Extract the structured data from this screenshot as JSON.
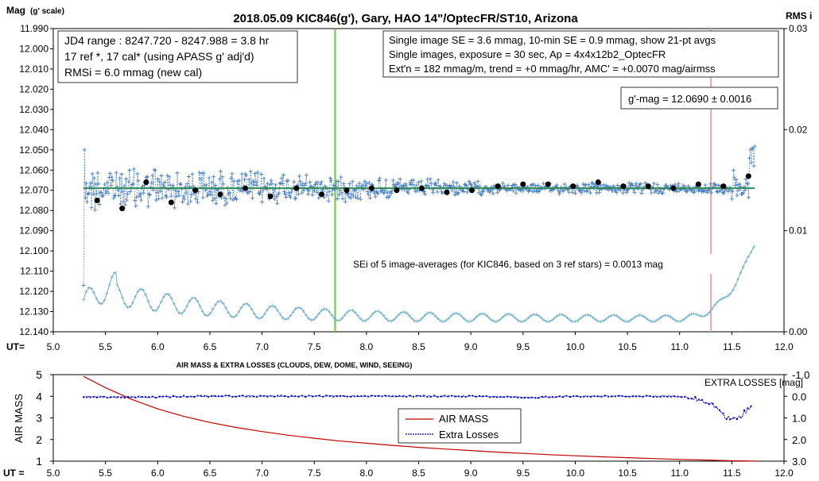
{
  "chart_data": [
    {
      "type": "line",
      "title": "2018.05.09  KIC846(g'),  Gary, HAO  14\"/OptecFR/ST10,  Arizona",
      "ylabel_left": "Mag",
      "ylabel_left_sub": "(g' scale)",
      "ylabel_right": "RMS i",
      "xlabel": "UT=",
      "xlim": [
        5.0,
        12.0
      ],
      "ylim_left": [
        12.14,
        11.99
      ],
      "ylim_right": [
        0.0,
        0.03
      ],
      "x_ticks": [
        "5.0",
        "5.5",
        "6.0",
        "6.5",
        "7.0",
        "7.5",
        "8.0",
        "8.5",
        "9.0",
        "9.5",
        "10.0",
        "10.5",
        "11.0",
        "11.5",
        "12.0"
      ],
      "y_left_ticks": [
        "11.990",
        "12.000",
        "12.010",
        "12.020",
        "12.030",
        "12.040",
        "12.050",
        "12.060",
        "12.070",
        "12.080",
        "12.090",
        "12.100",
        "12.110",
        "12.120",
        "12.130",
        "12.140"
      ],
      "y_right_ticks": [
        "0.03",
        "0.02",
        "0.01",
        "0.00"
      ],
      "vertical_lines": [
        {
          "x": 7.7,
          "color": "#66cc33"
        },
        {
          "x": 11.3,
          "color": "#f4a6b0"
        }
      ],
      "fit_line": {
        "y": 12.069,
        "color": "#2e8b57"
      },
      "grid": false,
      "annotations": {
        "box_left": [
          "JD4 range : 8247.720 - 8247.988 =  3.8  hr",
          "17 ref *,  17 cal* (using APASS g' adj'd)",
          "RMSi = 6.0 mmag (new cal)"
        ],
        "box_right": [
          "Single image SE = 3.6 mmag, 10-min SE = 0.9 mmag, show  21-pt avgs",
          "Single images, exposure = 30 sec, Ap = 4x4x12b2_OptecFR",
          "Ext'n = 182 mmag/m, trend =  +0 mmag/hr, AMC' = +0.0070 mag/airmss"
        ],
        "gmag_box": "g'-mag = 12.0690 ± 0.0016",
        "sei_text": "SEi of 5 image-averages (for KIC846, based on 3 ref stars) = 0.0013  mag"
      },
      "series": [
        {
          "name": "",
          "color": "#4a7fc1",
          "marker": "plus",
          "x_start": 5.29,
          "x_end": 11.72,
          "base": 12.069,
          "spread_start": 0.009,
          "spread_end": 0.002
        },
        {
          "name": "",
          "color": "#000000",
          "marker": "circle",
          "x": [
            5.42,
            5.66,
            5.89,
            6.13,
            6.36,
            6.6,
            6.84,
            7.08,
            7.33,
            7.57,
            7.81,
            8.05,
            8.29,
            8.53,
            8.77,
            9.01,
            9.26,
            9.5,
            9.74,
            9.98,
            10.22,
            10.46,
            10.7,
            10.94,
            11.18,
            11.42,
            11.66
          ],
          "y": [
            12.075,
            12.079,
            12.066,
            12.076,
            12.07,
            12.072,
            12.069,
            12.073,
            12.069,
            12.072,
            12.07,
            12.069,
            12.07,
            12.069,
            12.071,
            12.07,
            12.068,
            12.067,
            12.067,
            12.068,
            12.066,
            12.068,
            12.068,
            12.069,
            12.067,
            12.068,
            12.063
          ]
        },
        {
          "name": "",
          "color": "#6fb0c8",
          "marker": "plus",
          "axis": "right",
          "note": "RMS i",
          "x_start": 5.29,
          "x_end": 11.72
        }
      ]
    },
    {
      "type": "line",
      "title": "AIR MASS & EXTRA LOSSES (CLOUDS, DEW, DOME, WIND, SEEING)",
      "ylabel_left": "AIR MASS",
      "ylabel_right": "EXTRA LOSSES [mag]",
      "xlabel": "UT =",
      "xlim": [
        5.0,
        12.0
      ],
      "ylim_left": [
        1,
        5
      ],
      "ylim_right": [
        3.0,
        -1.0
      ],
      "x_ticks": [
        "5.0",
        "5.5",
        "6.0",
        "6.5",
        "7.0",
        "7.5",
        "8.0",
        "8.5",
        "9.0",
        "9.5",
        "10.0",
        "10.5",
        "11.0",
        "11.5",
        "12.0"
      ],
      "y_left_ticks": [
        "5",
        "4",
        "3",
        "2",
        "1"
      ],
      "y_right_ticks": [
        "-1.0",
        "0.0",
        "1.0",
        "2.0",
        "3.0"
      ],
      "legend": {
        "position": "center-right"
      },
      "series": [
        {
          "name": "AIR MASS",
          "color": "#c00000",
          "x": [
            5.29,
            5.5,
            5.75,
            6.0,
            6.25,
            6.5,
            6.75,
            7.0,
            7.25,
            7.5,
            7.75,
            8.0,
            8.25,
            8.5,
            8.75,
            9.0,
            9.25,
            9.5,
            9.75,
            10.0,
            10.25,
            10.5,
            10.75,
            11.0,
            11.25,
            11.5,
            11.75
          ],
          "y": [
            4.92,
            4.4,
            3.86,
            3.42,
            3.07,
            2.79,
            2.56,
            2.37,
            2.2,
            2.06,
            1.93,
            1.83,
            1.73,
            1.64,
            1.56,
            1.49,
            1.42,
            1.36,
            1.3,
            1.25,
            1.2,
            1.16,
            1.12,
            1.08,
            1.05,
            1.02,
            1.0
          ]
        },
        {
          "name": "Extra Losses",
          "color": "#0000cc",
          "axis": "right",
          "x": [
            5.29,
            5.5,
            5.8,
            6.0,
            6.3,
            6.6,
            7.0,
            7.5,
            8.0,
            8.5,
            9.0,
            9.4,
            9.55,
            9.7,
            10.0,
            10.5,
            11.0,
            11.2,
            11.35,
            11.45,
            11.55,
            11.62,
            11.7
          ],
          "y": [
            0.02,
            0.05,
            0.04,
            0.04,
            0.0,
            -0.01,
            0.0,
            0.0,
            -0.01,
            0.0,
            0.0,
            0.04,
            0.08,
            0.03,
            0.0,
            0.0,
            0.0,
            0.2,
            0.5,
            1.0,
            1.1,
            0.7,
            0.5
          ]
        }
      ]
    }
  ]
}
